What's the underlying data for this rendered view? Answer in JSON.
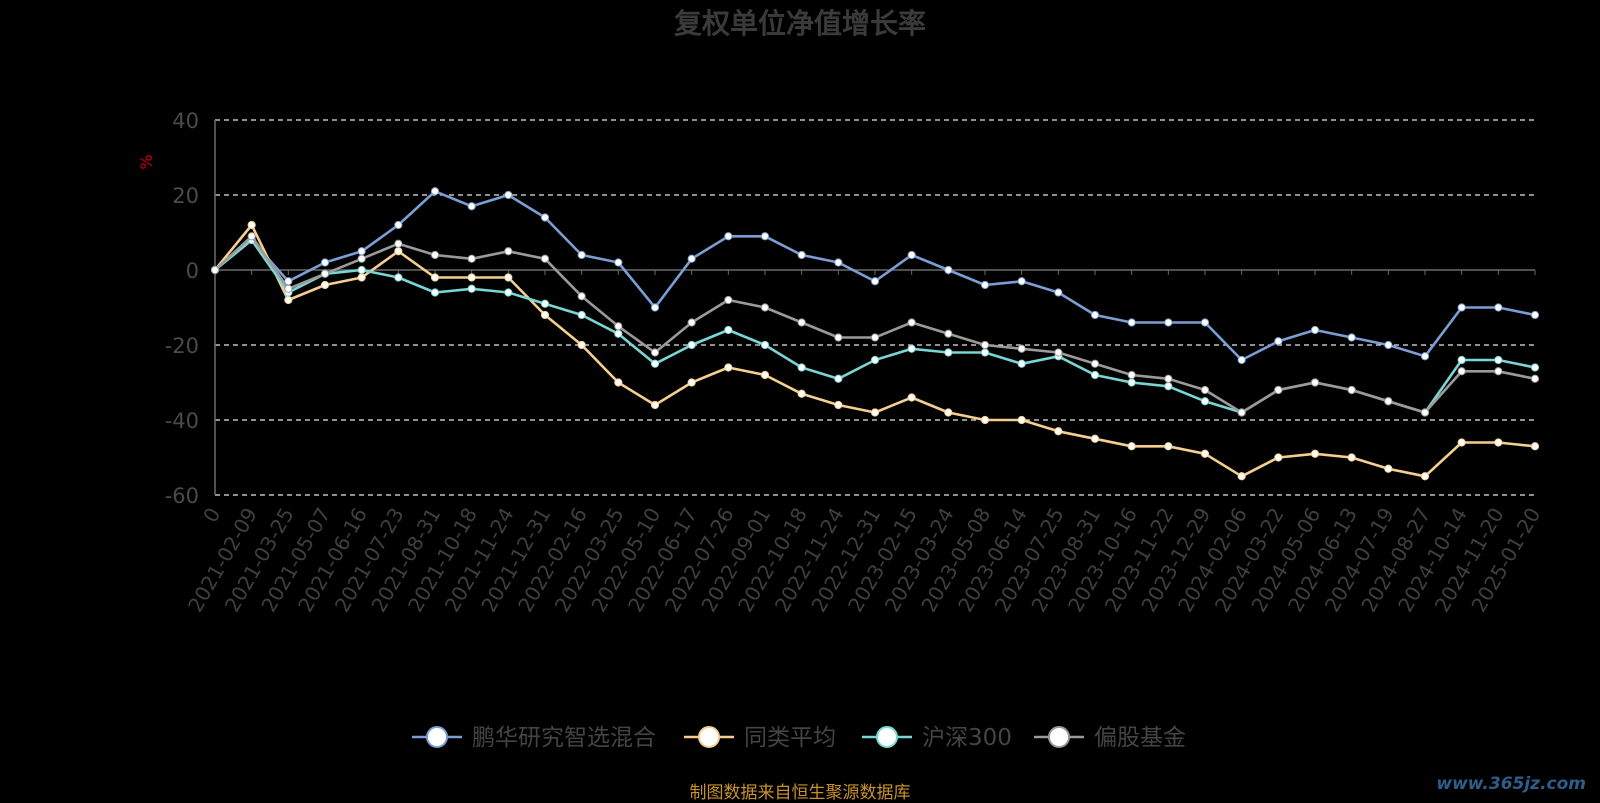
{
  "watermark": "www.365jz.com",
  "source_note": "制图数据来自恒生聚源数据库",
  "chart_data": {
    "type": "line",
    "title": "复权单位净值增长率",
    "ylabel": "%",
    "ylabel_color": "#cc0000",
    "ylim": [
      -60,
      40
    ],
    "yticks": [
      40,
      20,
      0,
      -20,
      -40,
      -60
    ],
    "grid": true,
    "legend_position": "bottom-center",
    "x_ticks": [
      "0",
      "2021-02-09",
      "2021-03-25",
      "2021-05-07",
      "2021-06-16",
      "2021-07-23",
      "2021-08-31",
      "2021-10-18",
      "2021-11-24",
      "2021-12-31",
      "2022-02-16",
      "2022-03-25",
      "2022-05-10",
      "2022-06-17",
      "2022-07-26",
      "2022-09-01",
      "2022-10-18",
      "2022-11-24",
      "2022-12-31",
      "2023-02-15",
      "2023-03-24",
      "2023-05-08",
      "2023-06-14",
      "2023-07-25",
      "2023-08-31",
      "2023-10-16",
      "2023-11-22",
      "2023-12-29",
      "2024-02-06",
      "2024-03-22",
      "2024-05-06",
      "2024-06-13",
      "2024-07-19",
      "2024-08-27",
      "2024-10-14",
      "2024-11-20",
      "2025-01-20"
    ],
    "series": [
      {
        "name": "鹏华研究智选混合",
        "color": "#7b9fd4",
        "values": [
          0,
          8,
          -3,
          2,
          5,
          12,
          21,
          17,
          20,
          14,
          4,
          2,
          -10,
          3,
          9,
          9,
          4,
          2,
          -3,
          4,
          0,
          -4,
          -3,
          -6,
          -12,
          -14,
          -14,
          -14,
          -24,
          -19,
          -16,
          -18,
          -20,
          -23,
          -10,
          -10,
          -12
        ]
      },
      {
        "name": "同类平均",
        "color": "#f5cf90",
        "values": [
          0,
          12,
          -8,
          -4,
          -2,
          5,
          -2,
          -2,
          -2,
          -12,
          -20,
          -30,
          -36,
          -30,
          -26,
          -28,
          -33,
          -36,
          -38,
          -34,
          -38,
          -40,
          -40,
          -43,
          -45,
          -47,
          -47,
          -49,
          -55,
          -50,
          -49,
          -50,
          -53,
          -55,
          -46,
          -46,
          -47
        ]
      },
      {
        "name": "沪深300",
        "color": "#78d6d4",
        "values": [
          0,
          8,
          -6,
          -1,
          0,
          -2,
          -6,
          -5,
          -6,
          -9,
          -12,
          -17,
          -25,
          -20,
          -16,
          -20,
          -26,
          -29,
          -24,
          -21,
          -22,
          -22,
          -25,
          -23,
          -28,
          -30,
          -31,
          -35,
          -38,
          -32,
          -30,
          -32,
          -35,
          -38,
          -24,
          -24,
          -26
        ]
      },
      {
        "name": "偏股基金",
        "color": "#9a9a9a",
        "values": [
          0,
          9,
          -5,
          -1,
          3,
          7,
          4,
          3,
          5,
          3,
          -7,
          -15,
          -22,
          -14,
          -8,
          -10,
          -14,
          -18,
          -18,
          -14,
          -17,
          -20,
          -21,
          -22,
          -25,
          -28,
          -29,
          -32,
          -38,
          -32,
          -30,
          -32,
          -35,
          -38,
          -27,
          -27,
          -29
        ]
      }
    ]
  }
}
